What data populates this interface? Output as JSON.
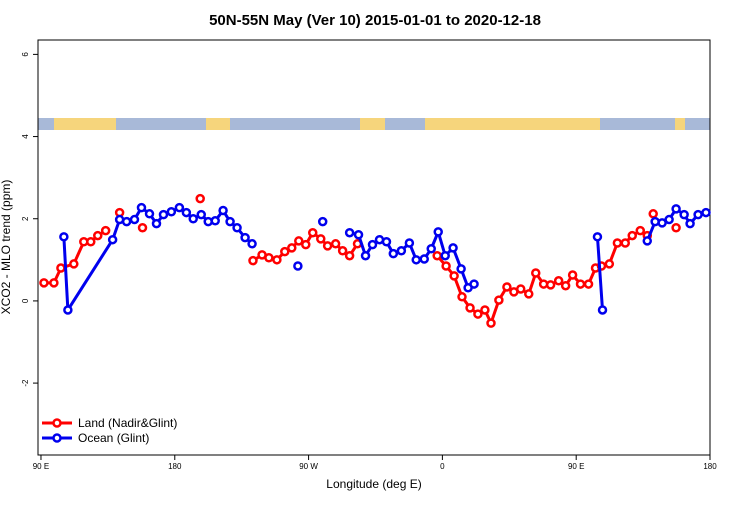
{
  "chart_data": {
    "type": "line",
    "title": "50N-55N May (Ver 10)   2015-01-01 to 2020-12-18",
    "x_label": "Longitude (deg E)",
    "y_label": "XCO2 - MLO trend (ppm)",
    "xlim": [
      88,
      540
    ],
    "ylim": [
      -3.75,
      6.35
    ],
    "xticks": [
      {
        "value": 90,
        "label": "90 E"
      },
      180,
      {
        "value": 270,
        "label": "90 W"
      },
      {
        "value": 360,
        "label": "0"
      },
      {
        "value": 450,
        "label": "90 E"
      },
      {
        "value": 540,
        "label": "180"
      }
    ],
    "yticks": [
      -2,
      0,
      2,
      4,
      6
    ],
    "legend": "bottomleft",
    "series": [
      {
        "name": "Land (Nadir&Glint)",
        "color": "#ff0000",
        "x": [
          92.0,
          98.7,
          103.4,
          112.1,
          118.8,
          123.5,
          128.2,
          133.5,
          null,
          142.9,
          null,
          158.3,
          null,
          197.1,
          null,
          232.6,
          238.7,
          243.3,
          248.7,
          254.0,
          258.7,
          263.4,
          268.1,
          272.8,
          278.2,
          282.8,
          288.2,
          292.9,
          297.6,
          302.9,
          null,
          356.5,
          362.5,
          367.9,
          373.2,
          378.6,
          383.9,
          388.6,
          392.7,
          398.0,
          403.4,
          408.1,
          412.7,
          418.1,
          422.8,
          428.1,
          432.8,
          438.2,
          442.9,
          447.6,
          452.9,
          458.3,
          463.0,
          467.0,
          472.3,
          477.7,
          483.0,
          487.7,
          493.1,
          497.8,
          null,
          501.8,
          null,
          517.2
        ],
        "values": [
          0.44,
          0.44,
          0.8,
          0.9,
          1.44,
          1.44,
          1.59,
          1.71,
          null,
          2.15,
          null,
          1.78,
          null,
          2.49,
          null,
          0.98,
          1.12,
          1.05,
          1.0,
          1.2,
          1.29,
          1.46,
          1.37,
          1.66,
          1.51,
          1.34,
          1.39,
          1.22,
          1.1,
          1.39,
          null,
          1.1,
          0.85,
          0.61,
          0.1,
          -0.17,
          -0.32,
          -0.22,
          -0.54,
          0.02,
          0.34,
          0.22,
          0.29,
          0.17,
          0.68,
          0.41,
          0.39,
          0.49,
          0.37,
          0.63,
          0.41,
          0.41,
          0.8,
          0.85,
          0.9,
          1.41,
          1.41,
          1.59,
          1.71,
          1.59,
          null,
          2.12,
          null,
          1.78
        ]
      },
      {
        "name": "Ocean (Glint)",
        "color": "#0000ee",
        "x": [
          105.4,
          108.1,
          138.2,
          142.9,
          147.6,
          152.9,
          157.6,
          163.0,
          167.7,
          172.4,
          177.7,
          183.1,
          187.8,
          192.4,
          197.8,
          202.5,
          207.2,
          212.5,
          217.2,
          221.9,
          227.3,
          232.0,
          null,
          262.8,
          null,
          279.5,
          null,
          297.6,
          303.6,
          308.3,
          313.0,
          317.7,
          322.4,
          327.0,
          332.4,
          337.8,
          342.4,
          347.8,
          352.5,
          357.2,
          361.9,
          367.2,
          372.6,
          377.3,
          381.3,
          null,
          464.3,
          467.7,
          null,
          497.8,
          503.1,
          507.8,
          512.5,
          517.2,
          522.6,
          526.6,
          532.0,
          537.3
        ],
        "values": [
          1.56,
          -0.22,
          1.49,
          1.98,
          1.93,
          1.98,
          2.27,
          2.12,
          1.88,
          2.1,
          2.17,
          2.27,
          2.15,
          2.0,
          2.1,
          1.93,
          1.95,
          2.2,
          1.93,
          1.78,
          1.54,
          1.39,
          null,
          0.85,
          null,
          1.93,
          null,
          1.66,
          1.61,
          1.1,
          1.37,
          1.49,
          1.44,
          1.15,
          1.22,
          1.41,
          1.0,
          1.02,
          1.27,
          1.68,
          1.1,
          1.29,
          0.78,
          0.32,
          0.41,
          null,
          1.56,
          -0.22,
          null,
          1.46,
          1.93,
          1.9,
          1.98,
          2.24,
          2.1,
          1.88,
          2.1,
          2.15
        ]
      }
    ]
  }
}
